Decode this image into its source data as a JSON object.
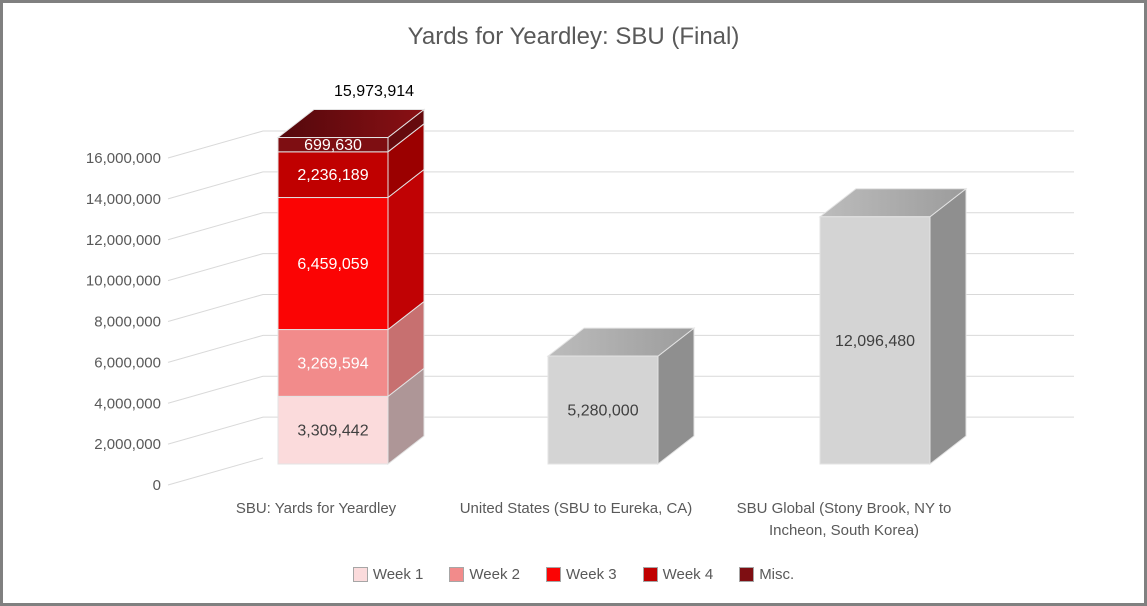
{
  "chart_data": {
    "type": "bar",
    "subtype": "3d-stacked-column",
    "title": "Yards for Yeardley: SBU (Final)",
    "xlabel": "",
    "ylabel": "",
    "grid": true,
    "legend_position": "bottom",
    "y_axis": {
      "min": 0,
      "max": 16000000,
      "step": 2000000,
      "tick_labels": [
        "0",
        "2,000,000",
        "4,000,000",
        "6,000,000",
        "8,000,000",
        "10,000,000",
        "12,000,000",
        "14,000,000",
        "16,000,000"
      ]
    },
    "categories": [
      "SBU: Yards for Yeardley",
      "United States (SBU to Eureka, CA)",
      "SBU Global (Stony Brook, NY to Incheon, South Korea)"
    ],
    "series": [
      {
        "name": "Week 1",
        "values": [
          3309442,
          null,
          null
        ]
      },
      {
        "name": "Week 2",
        "values": [
          3269594,
          null,
          null
        ]
      },
      {
        "name": "Week 3",
        "values": [
          6459059,
          null,
          null
        ]
      },
      {
        "name": "Week 4",
        "values": [
          2236189,
          null,
          null
        ]
      },
      {
        "name": "Misc.",
        "values": [
          699630,
          null,
          null
        ]
      },
      {
        "name": null,
        "values": [
          null,
          5280000,
          12096480
        ]
      }
    ],
    "bars": [
      {
        "category_lines": [
          "SBU: Yards for Yeardley"
        ],
        "total": 15973914,
        "total_label": "15,973,914",
        "segments": [
          {
            "series": "Week 1",
            "value": 3309442,
            "label": "3,309,442",
            "palette": "week1"
          },
          {
            "series": "Week 2",
            "value": 3269594,
            "label": "3,269,594",
            "palette": "week2"
          },
          {
            "series": "Week 3",
            "value": 6459059,
            "label": "6,459,059",
            "palette": "week3"
          },
          {
            "series": "Week 4",
            "value": 2236189,
            "label": "2,236,189",
            "palette": "week4"
          },
          {
            "series": "Misc.",
            "value": 699630,
            "label": "699,630",
            "palette": "misc"
          }
        ]
      },
      {
        "category_lines": [
          "United States (SBU to Eureka, CA)"
        ],
        "segments": [
          {
            "series": null,
            "value": 5280000,
            "label": "5,280,000",
            "palette": "gray"
          }
        ]
      },
      {
        "category_lines": [
          "SBU Global (Stony Brook, NY to",
          "Incheon, South Korea)"
        ],
        "segments": [
          {
            "series": null,
            "value": 12096480,
            "label": "12,096,480",
            "palette": "gray"
          }
        ]
      }
    ],
    "legend": [
      {
        "label": "Week 1",
        "palette": "week1"
      },
      {
        "label": "Week 2",
        "palette": "week2"
      },
      {
        "label": "Week 3",
        "palette": "week3"
      },
      {
        "label": "Week 4",
        "palette": "week4"
      },
      {
        "label": "Misc.",
        "palette": "misc"
      }
    ],
    "palette": {
      "week1": {
        "front": "#FBDBDC",
        "side": "#AE9697",
        "text": "#3F3F3F"
      },
      "week2": {
        "front": "#F28B8B",
        "side": "#C77070",
        "text": "#FFFFFF"
      },
      "week3": {
        "front": "#FB0404",
        "side": "#C00204",
        "text": "#FFFFFF"
      },
      "week4": {
        "front": "#C00000",
        "side": "#9B0000",
        "text": "#FFFFFF"
      },
      "misc": {
        "front": "#7E0E12",
        "side": "#660A0D",
        "top_from": "#53080C",
        "top_to": "#8A1014",
        "text": "#FFFFFF"
      },
      "gray": {
        "front": "#D4D4D4",
        "side": "#8F8F8F",
        "top_from": "#BCBCBC",
        "top_to": "#9C9C9C",
        "text": "#3F3F3F"
      }
    },
    "colors": {
      "title_text": "#595959",
      "axis_text": "#595959",
      "category_text": "#595959",
      "legend_text": "#595959",
      "gridline": "#D9D9D9",
      "face_stroke": "#E3E3E3",
      "total_label": "#000000",
      "frame_border": "#808080",
      "background": "#FFFFFF"
    }
  }
}
